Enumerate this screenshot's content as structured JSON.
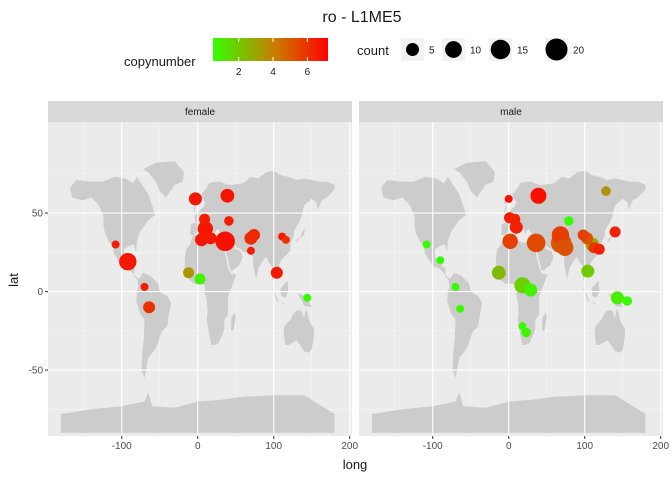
{
  "chart_data": {
    "type": "scatter",
    "title": "ro - L1ME5",
    "xlabel": "long",
    "ylabel": "lat",
    "xlim": [
      -197,
      203
    ],
    "ylim": [
      -92,
      108
    ],
    "x_ticks": [
      -100,
      0,
      100,
      200
    ],
    "x_tick_labels": [
      "-100",
      "0",
      "100",
      "200"
    ],
    "y_ticks": [
      -50,
      0,
      50
    ],
    "y_tick_labels": [
      "-50",
      "0",
      "50"
    ],
    "grid": true,
    "legend_placement": "top",
    "color_legend": {
      "title": "copynumber",
      "range": [
        0.5,
        7.2
      ],
      "low_color": "#33ff00",
      "mid_color": "#cc7a00",
      "high_color": "#ff0000",
      "breaks": [
        2,
        4,
        6
      ],
      "break_labels": [
        "2",
        "4",
        "6"
      ]
    },
    "size_legend": {
      "title": "count",
      "breaks": [
        5,
        10,
        15,
        20
      ],
      "break_labels": [
        "5",
        "10",
        "15",
        "20"
      ],
      "size_range": [
        1,
        22
      ]
    },
    "panels": [
      {
        "label": "female",
        "points": [
          {
            "x": -108,
            "y": 30,
            "count": 1,
            "copynumber": 6.5
          },
          {
            "x": -92,
            "y": 19,
            "count": 11,
            "copynumber": 6.6
          },
          {
            "x": -70,
            "y": 3,
            "count": 1,
            "copynumber": 6.5
          },
          {
            "x": -64,
            "y": -10,
            "count": 4,
            "copynumber": 6.0
          },
          {
            "x": -12,
            "y": 12,
            "count": 3,
            "copynumber": 3.4
          },
          {
            "x": -3,
            "y": 59,
            "count": 5,
            "copynumber": 6.6
          },
          {
            "x": 3,
            "y": 8,
            "count": 3,
            "copynumber": 0.8
          },
          {
            "x": 5,
            "y": 33,
            "count": 5,
            "copynumber": 6.6
          },
          {
            "x": 9,
            "y": 46,
            "count": 3,
            "copynumber": 6.5
          },
          {
            "x": 10,
            "y": 40,
            "count": 8,
            "copynumber": 6.7
          },
          {
            "x": 17,
            "y": 34,
            "count": 4,
            "copynumber": 6.6
          },
          {
            "x": 36,
            "y": 32,
            "count": 15,
            "copynumber": 6.8
          },
          {
            "x": 39,
            "y": 61,
            "count": 6,
            "copynumber": 6.7
          },
          {
            "x": 41,
            "y": 45,
            "count": 2,
            "copynumber": 6.5
          },
          {
            "x": 70,
            "y": 34,
            "count": 5,
            "copynumber": 6.1
          },
          {
            "x": 74,
            "y": 36,
            "count": 4,
            "copynumber": 6.2
          },
          {
            "x": 70,
            "y": 26,
            "count": 1,
            "copynumber": 6.5
          },
          {
            "x": 104,
            "y": 12,
            "count": 4,
            "copynumber": 6.6
          },
          {
            "x": 111,
            "y": 35,
            "count": 1,
            "copynumber": 6.6
          },
          {
            "x": 116,
            "y": 33,
            "count": 1,
            "copynumber": 6.0
          },
          {
            "x": 144,
            "y": -4,
            "count": 1,
            "copynumber": 0.6
          }
        ]
      },
      {
        "label": "male",
        "points": [
          {
            "x": -108,
            "y": 30,
            "count": 1,
            "copynumber": 0.6
          },
          {
            "x": -90,
            "y": 20,
            "count": 1,
            "copynumber": 0.6
          },
          {
            "x": -70,
            "y": 3,
            "count": 1,
            "copynumber": 0.6
          },
          {
            "x": -64,
            "y": -11,
            "count": 1,
            "copynumber": 0.6
          },
          {
            "x": -13,
            "y": 12,
            "count": 6,
            "copynumber": 2.4
          },
          {
            "x": 0,
            "y": 59,
            "count": 1,
            "copynumber": 6.8
          },
          {
            "x": 1,
            "y": 47,
            "count": 3,
            "copynumber": 6.5
          },
          {
            "x": 2,
            "y": 32,
            "count": 8,
            "copynumber": 5.6
          },
          {
            "x": 8,
            "y": 46,
            "count": 3,
            "copynumber": 6.4
          },
          {
            "x": 10,
            "y": 41,
            "count": 5,
            "copynumber": 6.4
          },
          {
            "x": 18,
            "y": 4,
            "count": 9,
            "copynumber": 1.8
          },
          {
            "x": 18,
            "y": -22,
            "count": 1,
            "copynumber": 0.6
          },
          {
            "x": 23,
            "y": -26,
            "count": 2,
            "copynumber": 0.7
          },
          {
            "x": 29,
            "y": 1,
            "count": 5,
            "copynumber": 0.9
          },
          {
            "x": 36,
            "y": 31,
            "count": 13,
            "copynumber": 5.4
          },
          {
            "x": 39,
            "y": 61,
            "count": 9,
            "copynumber": 6.8
          },
          {
            "x": 68,
            "y": 36,
            "count": 11,
            "copynumber": 5.7
          },
          {
            "x": 74,
            "y": 28,
            "count": 10,
            "copynumber": 5.2
          },
          {
            "x": 69,
            "y": 31,
            "count": 17,
            "copynumber": 5.1
          },
          {
            "x": 79,
            "y": 45,
            "count": 2,
            "copynumber": 0.6
          },
          {
            "x": 98,
            "y": 36,
            "count": 3,
            "copynumber": 5.6
          },
          {
            "x": 103,
            "y": 34,
            "count": 4,
            "copynumber": 5.2
          },
          {
            "x": 104,
            "y": 13,
            "count": 5,
            "copynumber": 2.0
          },
          {
            "x": 110,
            "y": 30,
            "count": 6,
            "copynumber": 3.0
          },
          {
            "x": 112,
            "y": 28,
            "count": 3,
            "copynumber": 5.9
          },
          {
            "x": 119,
            "y": 27,
            "count": 3,
            "copynumber": 6.4
          },
          {
            "x": 128,
            "y": 64,
            "count": 2,
            "copynumber": 3.5
          },
          {
            "x": 140,
            "y": 38,
            "count": 3,
            "copynumber": 6.4
          },
          {
            "x": 143,
            "y": -4,
            "count": 5,
            "copynumber": 1.0
          },
          {
            "x": 156,
            "y": -6,
            "count": 2,
            "copynumber": 0.6
          }
        ]
      }
    ]
  }
}
